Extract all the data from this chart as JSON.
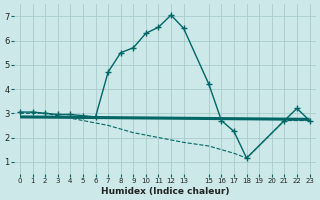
{
  "xlabel": "Humidex (Indice chaleur)",
  "bg_color": "#cce8e8",
  "grid_color": "#aacccc",
  "line_color": "#006666",
  "xlim": [
    -0.5,
    23.5
  ],
  "ylim": [
    0.5,
    7.5
  ],
  "xticks": [
    0,
    1,
    2,
    3,
    4,
    5,
    6,
    7,
    8,
    9,
    10,
    11,
    12,
    13,
    15,
    16,
    17,
    18,
    19,
    20,
    21,
    22,
    23
  ],
  "yticks": [
    1,
    2,
    3,
    4,
    5,
    6,
    7
  ],
  "thick_line_x": [
    0,
    23
  ],
  "thick_line_y": [
    2.85,
    2.75
  ],
  "main_curve_x": [
    0,
    1,
    2,
    3,
    4,
    5,
    6,
    7,
    8,
    9,
    10,
    11,
    12,
    13,
    15,
    16,
    17,
    18,
    21,
    22,
    23
  ],
  "main_curve_y": [
    3.05,
    3.05,
    3.0,
    2.95,
    2.95,
    2.9,
    2.85,
    4.7,
    5.5,
    5.7,
    6.3,
    6.55,
    7.05,
    6.5,
    4.2,
    2.7,
    2.25,
    1.15,
    2.7,
    3.2,
    2.7
  ],
  "decline_x": [
    0,
    2,
    3,
    4,
    5,
    6,
    7,
    8,
    9,
    10,
    11,
    12,
    13,
    15,
    16,
    17,
    18,
    21,
    22,
    23
  ],
  "decline_y": [
    3.0,
    3.0,
    2.9,
    2.8,
    2.7,
    2.6,
    2.5,
    2.35,
    2.2,
    2.1,
    2.0,
    1.9,
    1.8,
    1.65,
    1.5,
    1.35,
    1.15,
    2.7,
    2.7,
    2.7
  ]
}
